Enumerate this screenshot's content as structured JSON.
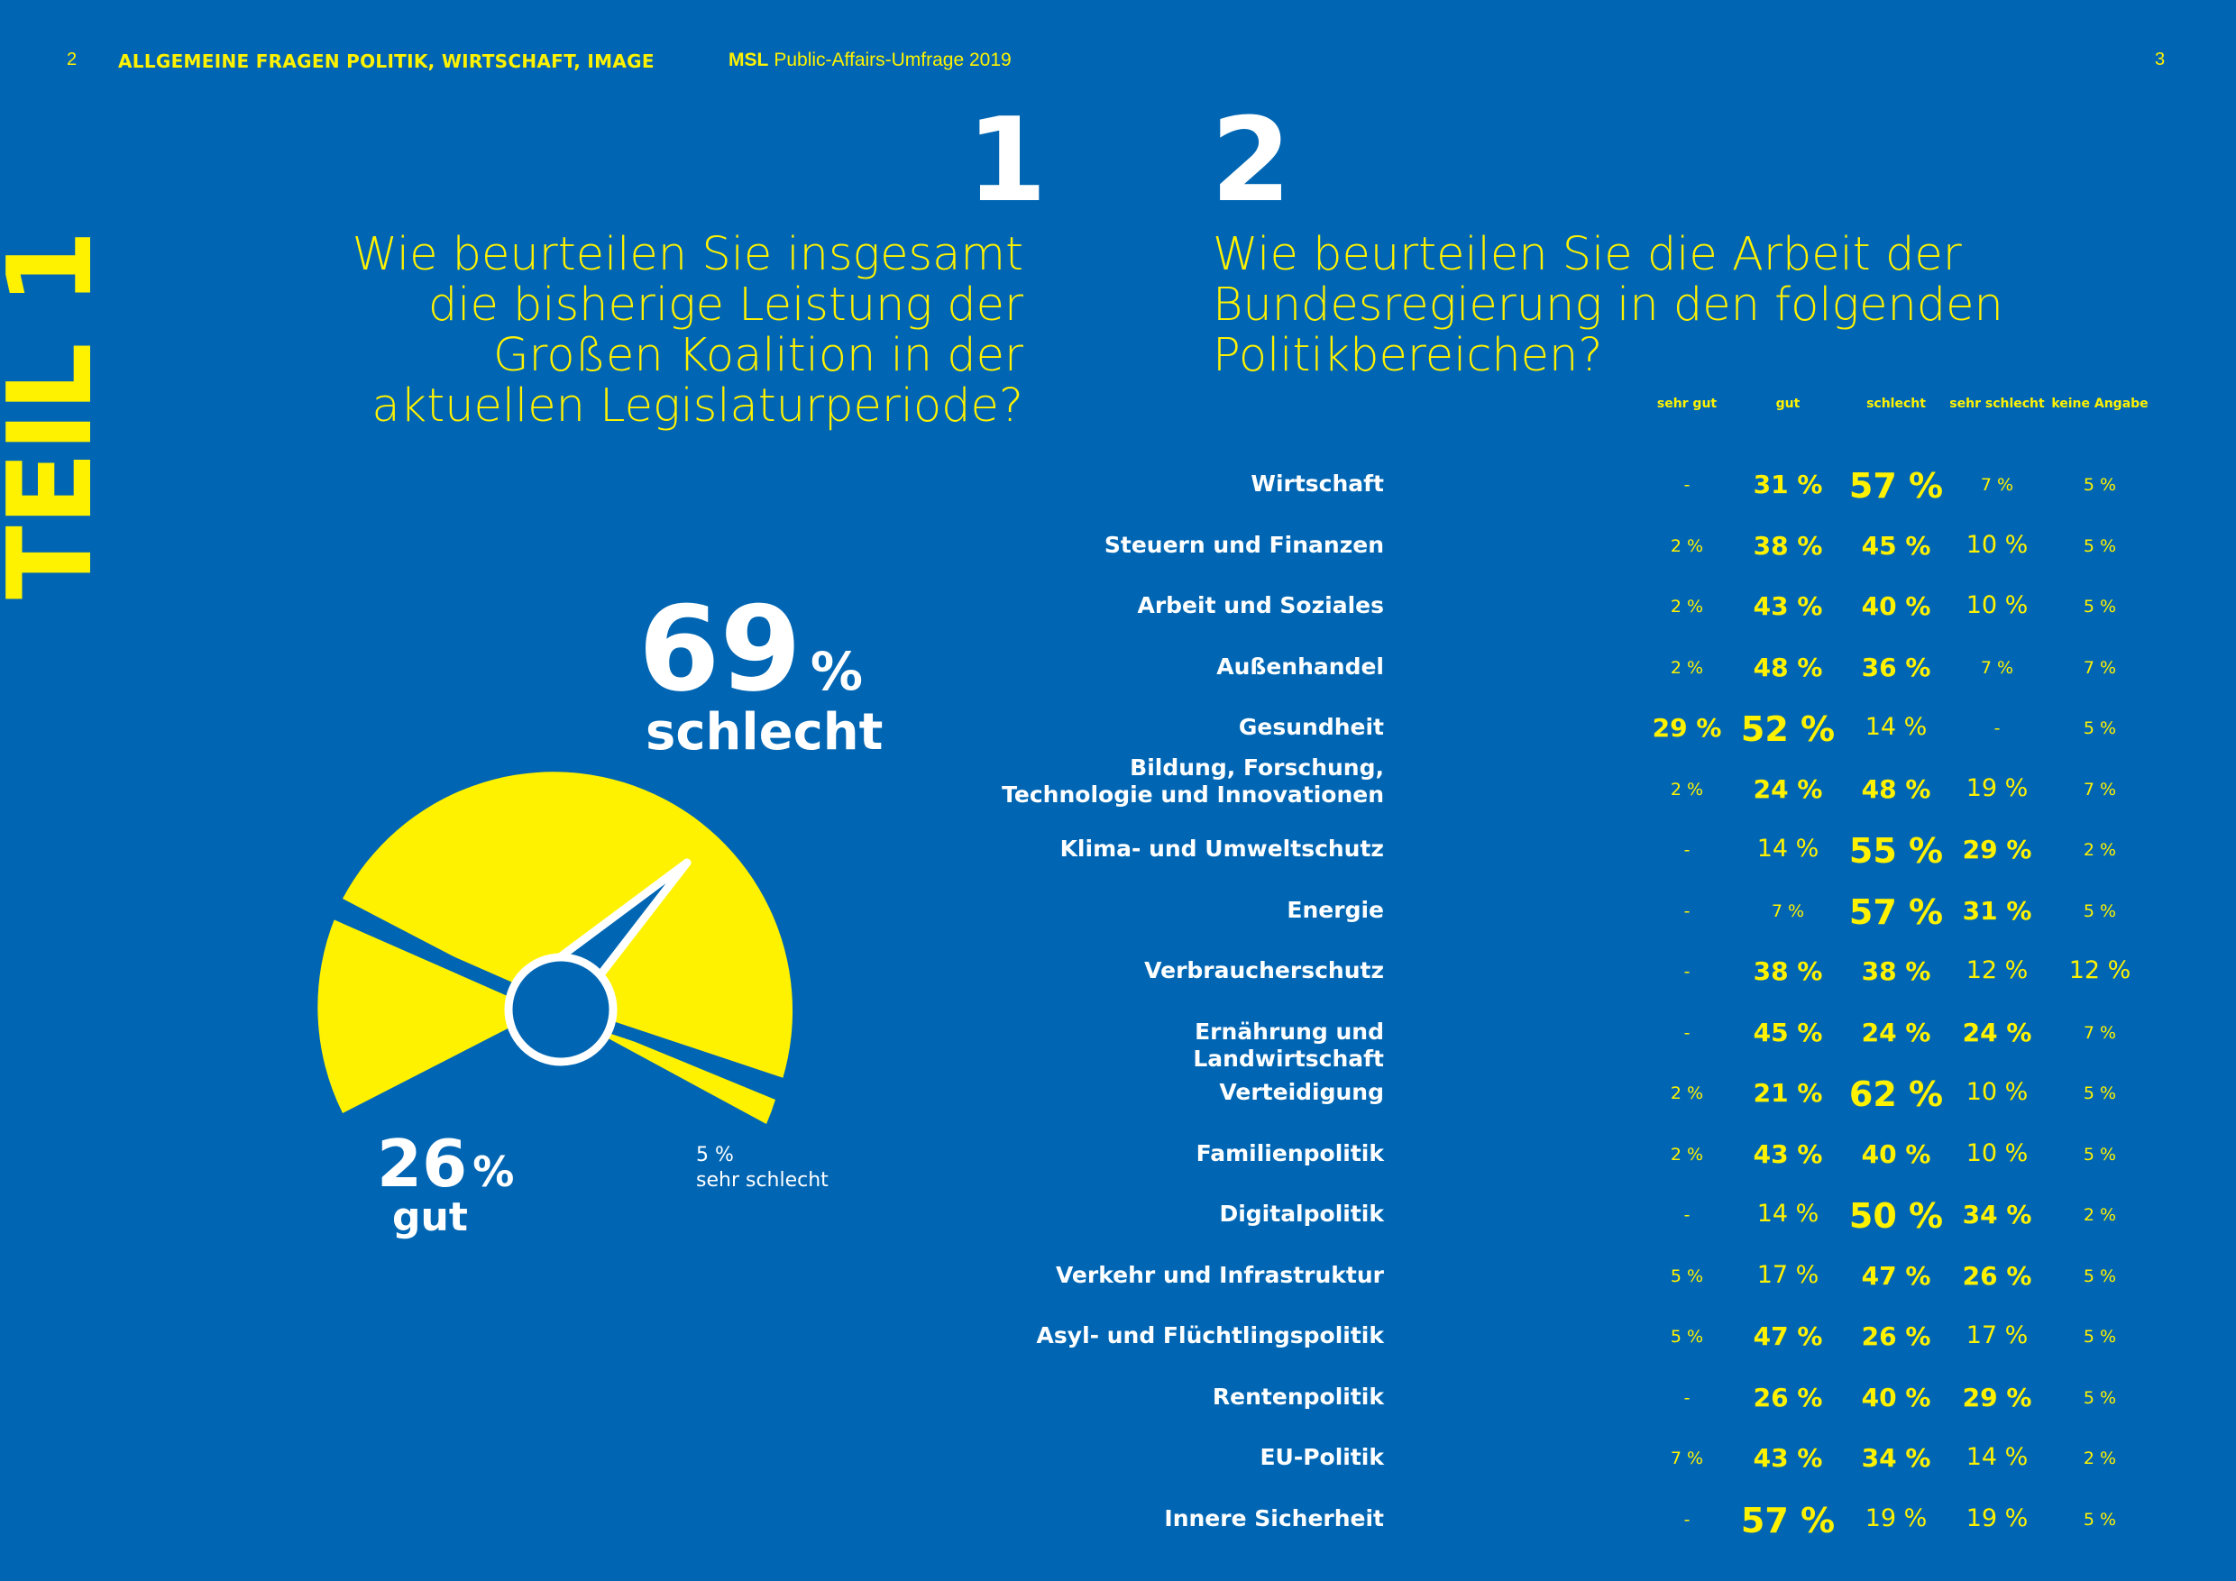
{
  "header": {
    "page_left": "2",
    "section": "ALLGEMEINE FRAGEN POLITIK, WIRTSCHAFT, IMAGE",
    "brand": "MSL",
    "publication": "Public-Affairs-Umfrage 2019",
    "page_right": "3"
  },
  "part_label": "TEIL 1",
  "q1": {
    "number": "1",
    "text": "Wie beurteilen Sie insgesamt die bisherige Leistung der Großen Koalition in der aktuellen Legislaturperiode?",
    "schlecht_value": "69",
    "schlecht_label": "schlecht",
    "gut_value": "26",
    "gut_label": "gut",
    "sehr_schlecht_value": "5 %",
    "sehr_schlecht_label": "sehr schlecht",
    "percent_sign": "%"
  },
  "q2": {
    "number": "2",
    "text": "Wie beurteilen Sie die Arbeit der Bundesregierung in den folgenden Politikbereichen?",
    "columns": [
      "sehr gut",
      "gut",
      "schlecht",
      "sehr schlecht",
      "keine Angabe"
    ]
  },
  "colors": {
    "background": "#0066b3",
    "accent": "#fff200",
    "text": "#ffffff"
  },
  "chart_data": [
    {
      "type": "pie",
      "categories": [
        "gut",
        "schlecht",
        "sehr schlecht"
      ],
      "values": [
        26,
        69,
        5
      ]
    },
    {
      "type": "table",
      "columns": [
        "sehr gut",
        "gut",
        "schlecht",
        "sehr schlecht",
        "keine Angabe"
      ],
      "rows": [
        {
          "label": "Wirtschaft",
          "values": [
            "-",
            "31 %",
            "57 %",
            "7 %",
            "5 %"
          ]
        },
        {
          "label": "Steuern und Finanzen",
          "values": [
            "2 %",
            "38 %",
            "45 %",
            "10 %",
            "5 %"
          ]
        },
        {
          "label": "Arbeit und Soziales",
          "values": [
            "2 %",
            "43 %",
            "40 %",
            "10 %",
            "5 %"
          ]
        },
        {
          "label": "Außenhandel",
          "values": [
            "2 %",
            "48 %",
            "36 %",
            "7 %",
            "7 %"
          ]
        },
        {
          "label": "Gesundheit",
          "values": [
            "29 %",
            "52 %",
            "14 %",
            "-",
            "5 %"
          ]
        },
        {
          "label": "Bildung, Forschung, Technologie und Innovationen",
          "values": [
            "2 %",
            "24 %",
            "48 %",
            "19 %",
            "7 %"
          ]
        },
        {
          "label": "Klima- und Umweltschutz",
          "values": [
            "-",
            "14 %",
            "55 %",
            "29 %",
            "2 %"
          ]
        },
        {
          "label": "Energie",
          "values": [
            "-",
            "7 %",
            "57 %",
            "31 %",
            "5 %"
          ]
        },
        {
          "label": "Verbraucherschutz",
          "values": [
            "-",
            "38 %",
            "38 %",
            "12 %",
            "12 %"
          ]
        },
        {
          "label": "Ernährung und Landwirtschaft",
          "values": [
            "-",
            "45 %",
            "24 %",
            "24 %",
            "7 %"
          ]
        },
        {
          "label": "Verteidigung",
          "values": [
            "2 %",
            "21 %",
            "62 %",
            "10 %",
            "5 %"
          ]
        },
        {
          "label": "Familienpolitik",
          "values": [
            "2 %",
            "43 %",
            "40 %",
            "10 %",
            "5 %"
          ]
        },
        {
          "label": "Digitalpolitik",
          "values": [
            "-",
            "14 %",
            "50 %",
            "34 %",
            "2 %"
          ]
        },
        {
          "label": "Verkehr und Infrastruktur",
          "values": [
            "5 %",
            "17 %",
            "47 %",
            "26 %",
            "5 %"
          ]
        },
        {
          "label": "Asyl- und Flüchtlingspolitik",
          "values": [
            "5 %",
            "47 %",
            "26 %",
            "17 %",
            "5 %"
          ]
        },
        {
          "label": "Rentenpolitik",
          "values": [
            "-",
            "26 %",
            "40 %",
            "29 %",
            "5 %"
          ]
        },
        {
          "label": "EU-Politik",
          "values": [
            "7 %",
            "43 %",
            "34 %",
            "14 %",
            "2 %"
          ]
        },
        {
          "label": "Innere Sicherheit",
          "values": [
            "-",
            "57 %",
            "19 %",
            "19 %",
            "5 %"
          ]
        }
      ]
    }
  ]
}
